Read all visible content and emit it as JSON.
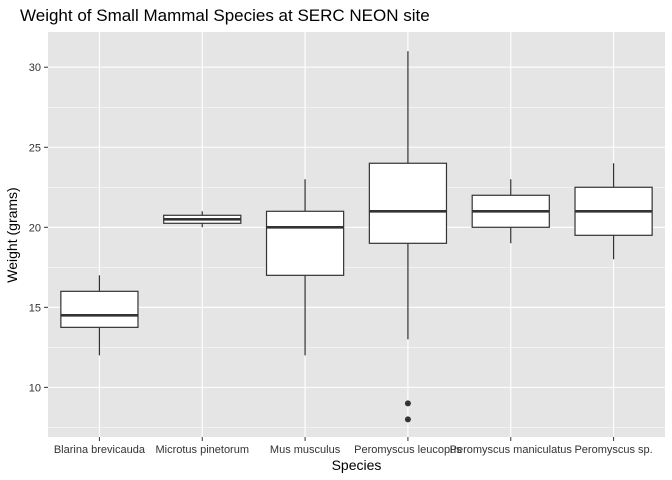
{
  "chart_data": {
    "type": "boxplot",
    "title": "Weight of Small Mammal Species at SERC NEON site",
    "xlabel": "Species",
    "ylabel": "Weight (grams)",
    "ylim": [
      6.9,
      32.2
    ],
    "yticks": [
      10,
      15,
      20,
      25,
      30
    ],
    "grid": true,
    "categories": [
      "Blarina brevicauda",
      "Microtus pinetorum",
      "Mus musculus",
      "Peromyscus leucopus",
      "Peromyscus maniculatus",
      "Peromyscus sp."
    ],
    "boxes": [
      {
        "min": 12,
        "q1": 13.75,
        "median": 14.5,
        "q3": 16,
        "max": 17,
        "outliers": []
      },
      {
        "min": 20,
        "q1": 20.25,
        "median": 20.5,
        "q3": 20.75,
        "max": 21,
        "outliers": []
      },
      {
        "min": 12,
        "q1": 17,
        "median": 20,
        "q3": 21,
        "max": 23,
        "outliers": []
      },
      {
        "min": 13,
        "q1": 19,
        "median": 21,
        "q3": 24,
        "max": 31,
        "outliers": [
          9,
          8
        ]
      },
      {
        "min": 19,
        "q1": 20,
        "median": 21,
        "q3": 22,
        "max": 23,
        "outliers": []
      },
      {
        "min": 18,
        "q1": 19.5,
        "median": 21,
        "q3": 22.5,
        "max": 24,
        "outliers": []
      }
    ],
    "colors": {
      "panel": "#e5e5e5",
      "grid_major": "#ffffff",
      "box_fill": "#ffffff",
      "box_stroke": "#333333",
      "text": "#333333"
    }
  }
}
